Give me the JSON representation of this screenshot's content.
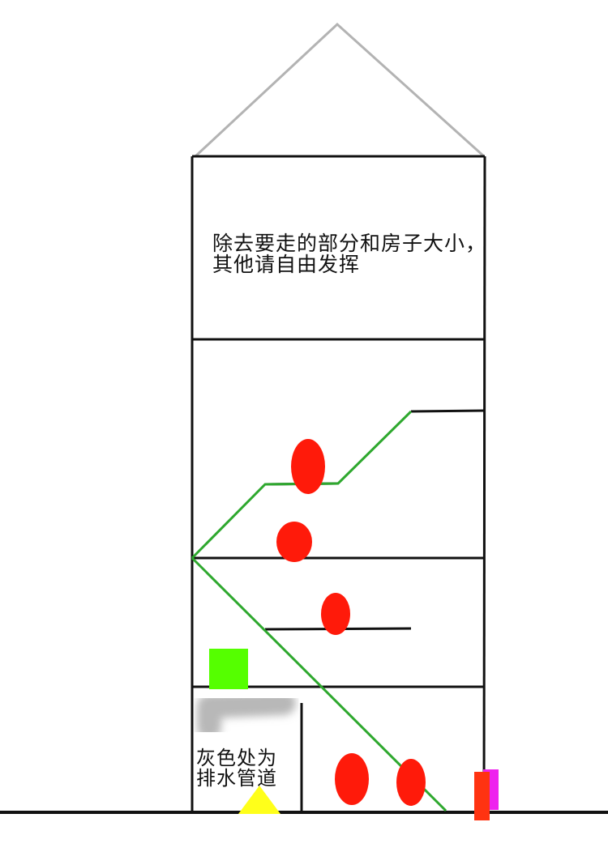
{
  "notes": {
    "top": {
      "line1": "除去要走的部分和房子大小，",
      "line2": "其他请自由发挥"
    },
    "bottom": {
      "line1": "灰色处为",
      "line2": "排水管道"
    }
  },
  "colors": {
    "wall": "#111111",
    "roof": "#b3b3b3",
    "path": "#2ea82e",
    "marker": "#ff1a0a",
    "box": "#55ff00",
    "pipe": "#b8b8b8",
    "triangle": "#ffff1a",
    "door": "#ff3311",
    "door_edge": "#ee22ee"
  }
}
